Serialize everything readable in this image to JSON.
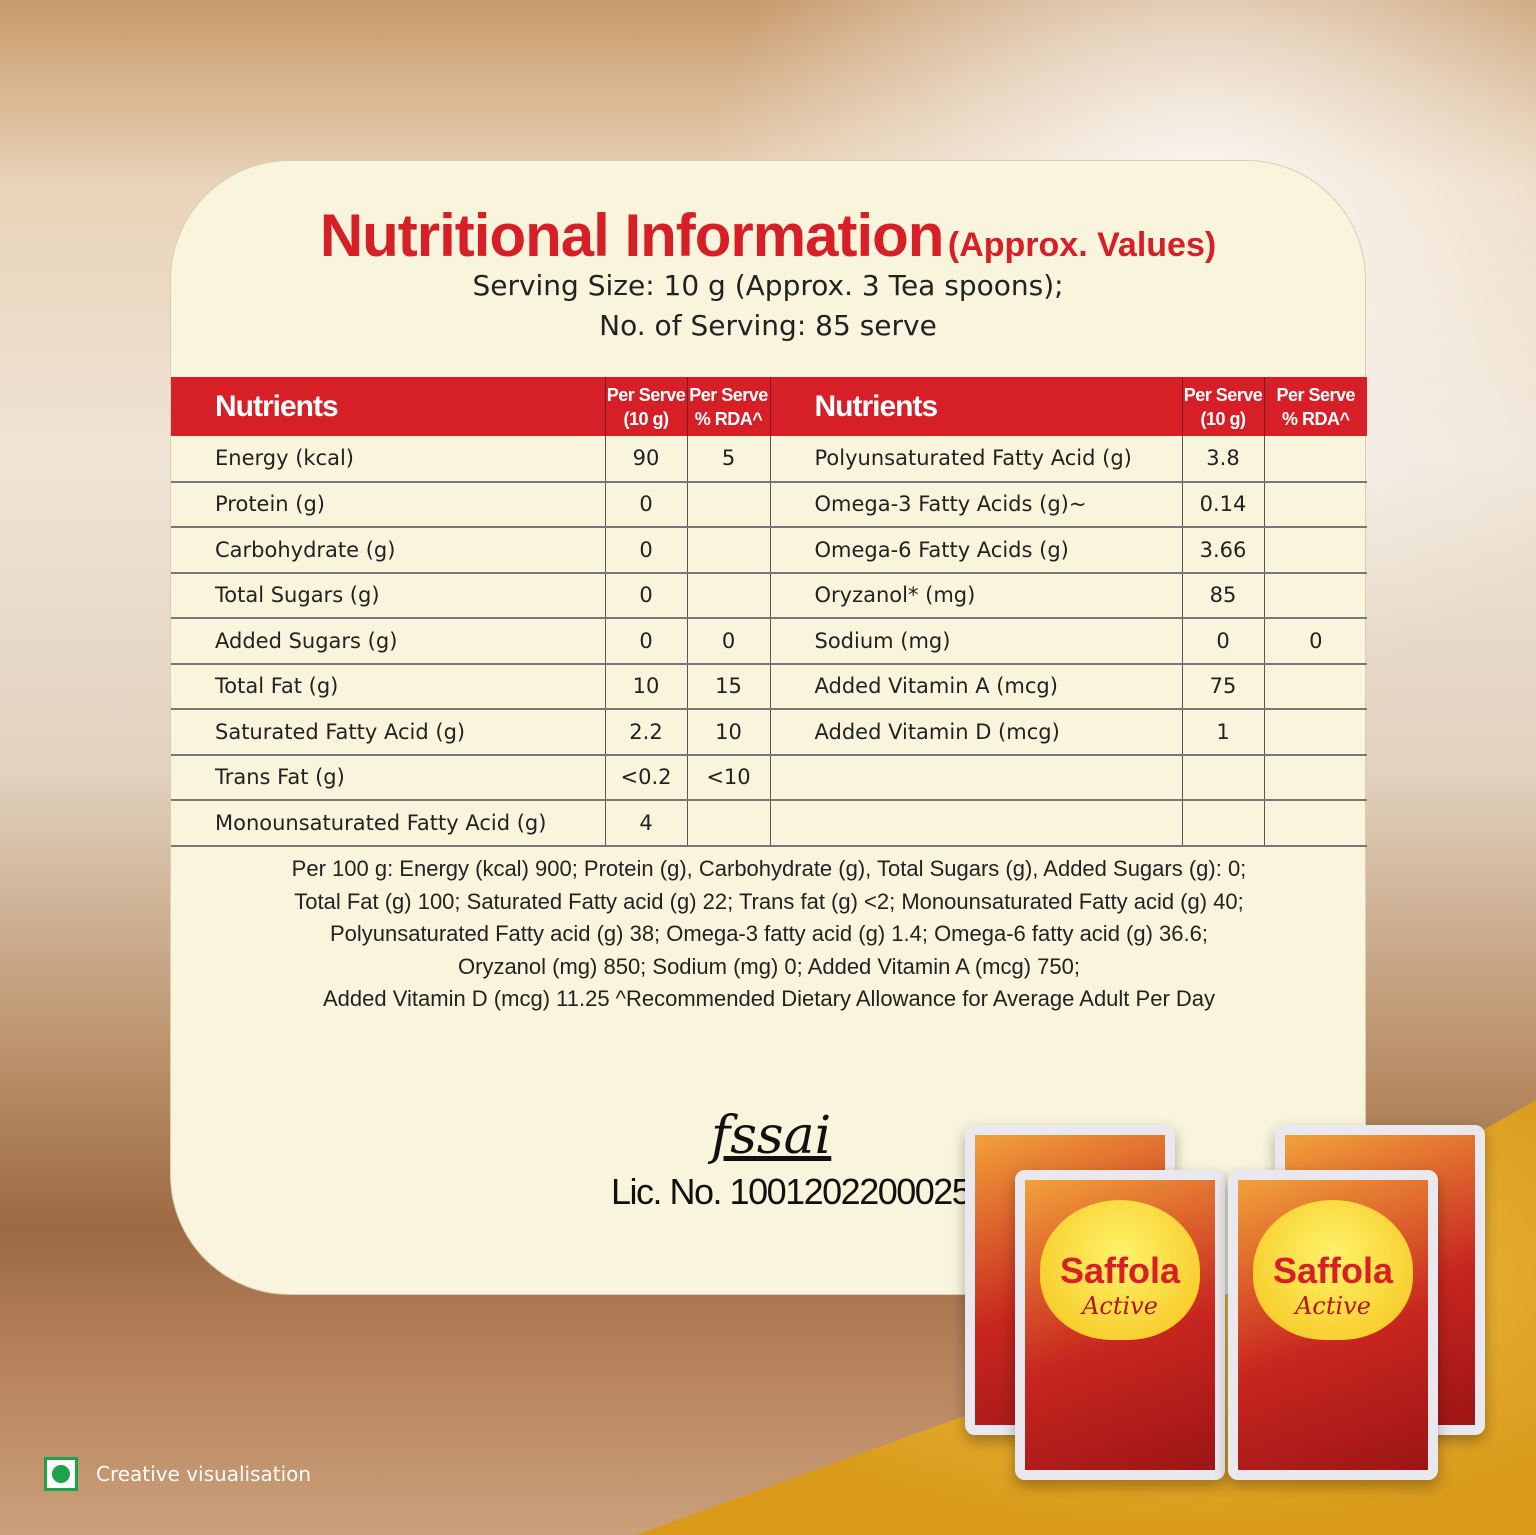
{
  "title": {
    "main": "Nutritional Information",
    "suffix": "(Approx. Values)"
  },
  "serving_size": "Serving Size: 10 g (Approx. 3 Tea spoons);",
  "servings": "No. of Serving: 85 serve",
  "headers": {
    "nutrients": "Nutrients",
    "per_serve_1": "Per Serve",
    "per_serve_1b": "(10 g)",
    "per_serve_2": "Per Serve",
    "per_serve_2b": "% RDA^"
  },
  "rows": [
    {
      "l": "Energy (kcal)",
      "lv": "90",
      "lr": "5",
      "r": "Polyunsaturated Fatty Acid (g)",
      "rv": "3.8",
      "rr": ""
    },
    {
      "l": "Protein (g)",
      "lv": "0",
      "lr": "",
      "r": "Omega-3 Fatty Acids (g)~",
      "rv": "0.14",
      "rr": ""
    },
    {
      "l": "Carbohydrate (g)",
      "lv": "0",
      "lr": "",
      "r": "Omega-6 Fatty Acids (g)",
      "rv": "3.66",
      "rr": ""
    },
    {
      "l": "Total Sugars (g)",
      "lv": "0",
      "lr": "",
      "r": "Oryzanol* (mg)",
      "rv": "85",
      "rr": ""
    },
    {
      "l": "Added Sugars (g)",
      "lv": "0",
      "lr": "0",
      "r": "Sodium (mg)",
      "rv": "0",
      "rr": "0"
    },
    {
      "l": "Total Fat (g)",
      "lv": "10",
      "lr": "15",
      "r": "Added Vitamin A (mcg)",
      "rv": "75",
      "rr": ""
    },
    {
      "l": "Saturated Fatty Acid (g)",
      "lv": "2.2",
      "lr": "10",
      "r": "Added Vitamin D (mcg)",
      "rv": "1",
      "rr": ""
    },
    {
      "l": "Trans Fat (g)",
      "lv": "<0.2",
      "lr": "<10",
      "r": "",
      "rv": "",
      "rr": ""
    },
    {
      "l": "Monounsaturated Fatty Acid (g)",
      "lv": "4",
      "lr": "",
      "r": "",
      "rv": "",
      "rr": ""
    }
  ],
  "footnote": [
    "Per 100 g: Energy (kcal) 900; Protein (g), Carbohydrate (g), Total Sugars (g), Added Sugars (g): 0;",
    "Total Fat (g) 100; Saturated Fatty acid (g) 22; Trans fat (g) <2; Monounsaturated Fatty acid (g) 40;",
    "Polyunsaturated Fatty acid (g) 38; Omega-3 fatty acid (g) 1.4; Omega-6 fatty acid (g) 36.6;",
    "Oryzanol (mg) 850; Sodium (mg) 0; Added Vitamin A (mcg) 750;",
    "Added Vitamin D (mcg) 11.25 ^Recommended Dietary Allowance for Average Adult Per Day"
  ],
  "fssai": {
    "logo": "fssai",
    "license": "Lic. No. 10012022000258"
  },
  "product": {
    "brand": "Saffola",
    "variant": "Active"
  },
  "creative_note": "Creative visualisation",
  "colors": {
    "accent": "#d71f27",
    "card": "#f8f5dc",
    "veg_mark": "#1ea24a"
  }
}
